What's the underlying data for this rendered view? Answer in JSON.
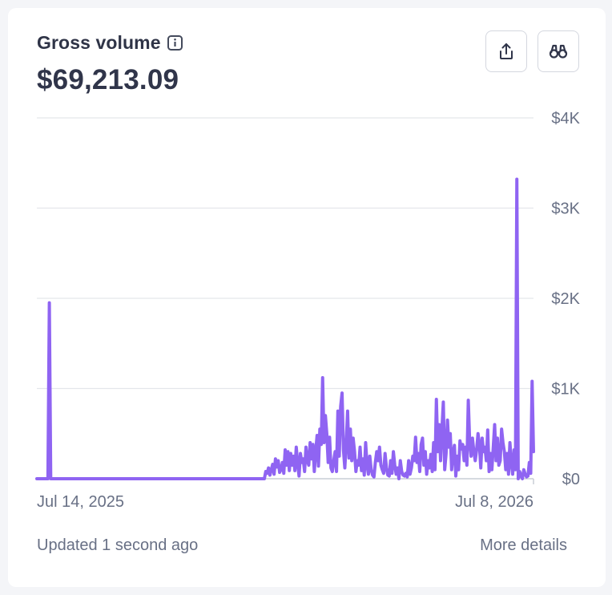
{
  "card": {
    "title": "Gross volume",
    "amount": "$69,213.09",
    "share_icon": "share-icon",
    "explore_icon": "binoculars-icon",
    "info_icon": "info-icon",
    "updated_text": "Updated 1 second ago",
    "more_details_label": "More details"
  },
  "colors": {
    "line": "#8f64f2",
    "grid": "#e4e6eb",
    "axis_text": "#687085",
    "title": "#2f3447"
  },
  "chart_data": {
    "type": "line",
    "title": "",
    "xlabel": "",
    "ylabel": "",
    "x_start": "Jul 14, 2025",
    "x_end": "Jul 8, 2026",
    "x_tick_labels": [
      "Jul 14, 2025",
      "Jul 8, 2026"
    ],
    "y_tick_labels": [
      "$0",
      "$1K",
      "$2K",
      "$3K",
      "$4K"
    ],
    "ylim": [
      0,
      4000
    ],
    "y_ticks": [
      0,
      1000,
      2000,
      3000,
      4000
    ],
    "grid": true,
    "series": [
      {
        "values": [
          0,
          0,
          0,
          0,
          0,
          0,
          0,
          0,
          0,
          1950,
          0,
          0,
          0,
          0,
          0,
          0,
          0,
          0,
          0,
          0,
          0,
          0,
          0,
          0,
          0,
          0,
          0,
          0,
          0,
          0,
          0,
          0,
          0,
          0,
          0,
          0,
          0,
          0,
          0,
          0,
          0,
          0,
          0,
          0,
          0,
          0,
          0,
          0,
          0,
          0,
          0,
          0,
          0,
          0,
          0,
          0,
          0,
          0,
          0,
          0,
          0,
          0,
          0,
          0,
          0,
          0,
          0,
          0,
          0,
          0,
          0,
          0,
          0,
          0,
          0,
          0,
          0,
          0,
          0,
          0,
          0,
          0,
          0,
          0,
          0,
          0,
          0,
          0,
          0,
          0,
          0,
          0,
          0,
          0,
          0,
          0,
          0,
          0,
          0,
          0,
          0,
          0,
          0,
          0,
          0,
          0,
          0,
          0,
          0,
          0,
          0,
          0,
          0,
          0,
          0,
          0,
          0,
          0,
          0,
          0,
          0,
          0,
          0,
          0,
          0,
          0,
          0,
          0,
          0,
          0,
          0,
          0,
          0,
          0,
          0,
          0,
          0,
          0,
          0,
          0,
          0,
          0,
          0,
          0,
          0,
          0,
          0,
          0,
          0,
          0,
          0,
          0,
          0,
          0,
          0,
          0,
          0,
          0,
          0,
          0,
          0,
          0,
          0,
          0,
          0,
          80,
          60,
          120,
          40,
          100,
          160,
          50,
          220,
          130,
          200,
          70,
          100,
          180,
          60,
          320,
          150,
          300,
          90,
          280,
          150,
          250,
          90,
          350,
          170,
          30,
          280,
          180,
          220,
          80,
          350,
          200,
          150,
          400,
          220,
          380,
          80,
          300,
          480,
          140,
          550,
          380,
          1120,
          400,
          700,
          500,
          180,
          460,
          120,
          80,
          200,
          300,
          80,
          750,
          250,
          800,
          950,
          320,
          120,
          400,
          750,
          230,
          550,
          200,
          450,
          300,
          80,
          200,
          150,
          350,
          90,
          220,
          40,
          400,
          150,
          50,
          250,
          100,
          40,
          20,
          180,
          300,
          200,
          350,
          150,
          100,
          60,
          280,
          120,
          40,
          30,
          200,
          60,
          300,
          150,
          50,
          120,
          0,
          200,
          80,
          40,
          30,
          60,
          20,
          200,
          50,
          120,
          250,
          200,
          460,
          180,
          280,
          80,
          380,
          450,
          150,
          300,
          50,
          200,
          120,
          270,
          80,
          400,
          100,
          880,
          300,
          600,
          200,
          550,
          850,
          100,
          280,
          650,
          350,
          500,
          100,
          280,
          370,
          30,
          250,
          100,
          420,
          330,
          380,
          200,
          350,
          150,
          870,
          400,
          250,
          450,
          300,
          200,
          320,
          500,
          380,
          120,
          450,
          300,
          350,
          200,
          540,
          80,
          280,
          100,
          350,
          600,
          200,
          450,
          150,
          200,
          550,
          400,
          300,
          100,
          280,
          50,
          400,
          180,
          50,
          320,
          100,
          3320,
          0,
          80,
          30,
          0,
          100,
          50,
          20,
          30,
          180,
          60,
          1080,
          300
        ]
      }
    ]
  }
}
